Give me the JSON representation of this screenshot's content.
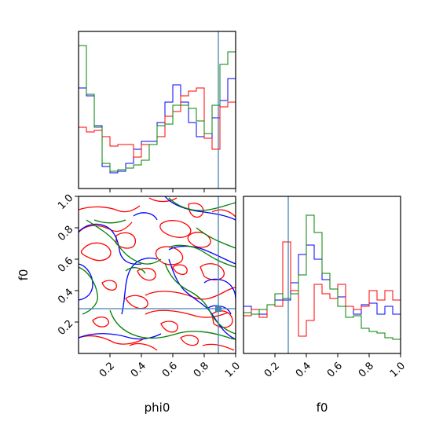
{
  "chart_data": {
    "type": "corner",
    "parameters": [
      "phi0",
      "f0"
    ],
    "truth": {
      "phi0": 0.89,
      "f0": 0.285
    },
    "truth_color": "#4682b4",
    "series_colors": {
      "blue": "#0000ff",
      "red": "#ff0000",
      "green": "#008000"
    },
    "ticks": [
      0.2,
      0.4,
      0.6,
      0.8,
      1.0
    ],
    "tick_labels": [
      "0.2",
      "0.4",
      "0.6",
      "0.8",
      "1.0"
    ],
    "ytick_labels_f0": [
      "0.2",
      "0.4",
      "0.6",
      "0.8",
      "1.0"
    ],
    "xlabel_phi0": "phi0",
    "xlabel_f0": "f0",
    "ylabel_f0": "f0",
    "hist_phi0": {
      "bins": 20,
      "range": [
        0,
        1
      ],
      "ymax": 1.0,
      "series": [
        {
          "color": "blue",
          "values": [
            0.64,
            0.59,
            0.4,
            0.14,
            0.1,
            0.11,
            0.16,
            0.25,
            0.3,
            0.3,
            0.42,
            0.55,
            0.66,
            0.55,
            0.42,
            0.33,
            0.32,
            0.45,
            0.56,
            0.7
          ]
        },
        {
          "color": "red",
          "values": [
            0.39,
            0.36,
            0.37,
            0.33,
            0.27,
            0.28,
            0.28,
            0.2,
            0.28,
            0.28,
            0.33,
            0.46,
            0.49,
            0.59,
            0.62,
            0.64,
            0.32,
            0.25,
            0.52,
            0.55
          ]
        },
        {
          "color": "green",
          "values": [
            0.91,
            0.6,
            0.39,
            0.16,
            0.11,
            0.12,
            0.13,
            0.15,
            0.18,
            0.28,
            0.4,
            0.41,
            0.53,
            0.53,
            0.51,
            0.43,
            0.35,
            0.53,
            0.79,
            0.87
          ]
        }
      ]
    },
    "hist_f0": {
      "bins": 20,
      "range": [
        0,
        1
      ],
      "ymax": 1.0,
      "series": [
        {
          "color": "blue",
          "values": [
            0.3,
            0.25,
            0.25,
            0.31,
            0.34,
            0.34,
            0.45,
            0.63,
            0.69,
            0.6,
            0.47,
            0.41,
            0.36,
            0.3,
            0.25,
            0.31,
            0.32,
            0.25,
            0.3,
            0.25
          ]
        },
        {
          "color": "red",
          "values": [
            0.24,
            0.28,
            0.23,
            0.31,
            0.3,
            0.71,
            0.4,
            0.11,
            0.21,
            0.44,
            0.38,
            0.35,
            0.44,
            0.3,
            0.28,
            0.3,
            0.4,
            0.34,
            0.4,
            0.34
          ]
        },
        {
          "color": "green",
          "values": [
            0.26,
            0.25,
            0.28,
            0.31,
            0.38,
            0.35,
            0.38,
            0.5,
            0.88,
            0.77,
            0.51,
            0.41,
            0.3,
            0.23,
            0.24,
            0.16,
            0.14,
            0.13,
            0.1,
            0.09
          ]
        }
      ]
    }
  }
}
